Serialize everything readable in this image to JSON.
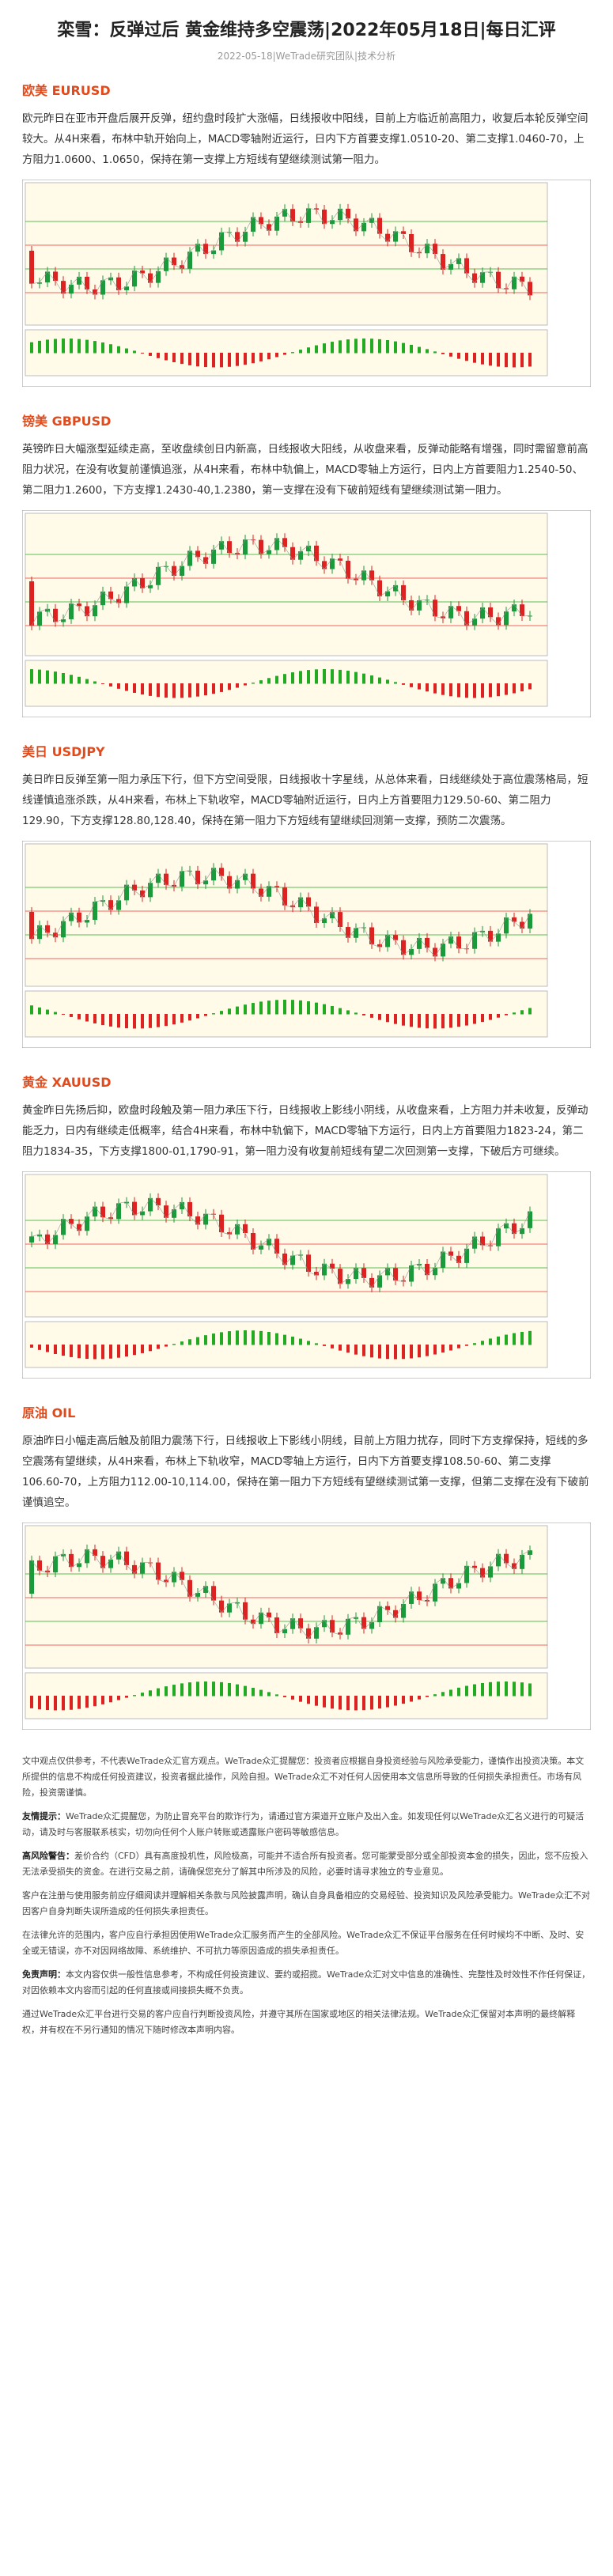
{
  "header": {
    "title": "栾雪：反弹过后 黄金维持多空震荡|2022年05月18日|每日汇评",
    "date_line": "2022-05-18|WeTrade研究团队|技术分析"
  },
  "sections": [
    {
      "heading": "欧美 EURUSD",
      "body": "欧元昨日在亚市开盘后展开反弹，纽约盘时段扩大涨幅，日线报收中阳线，目前上方临近前高阻力，收复后本轮反弹空间较大。从4H来看，布林中轨开始向上，MACD零轴附近运行，日内下方首要支撑1.0510-20、第二支撑1.0460-70，上方阻力1.0600、1.0650，保持在第一支撑上方短线有望继续测试第一阻力。"
    },
    {
      "heading": "镑美 GBPUSD",
      "body": "英镑昨日大幅涨型延续走高，至收盘续创日内新高，日线报收大阳线，从收盘来看，反弹动能略有增强，同时需留意前高阻力状况，在没有收复前谨慎追涨，从4H来看，布林中轨偏上，MACD零轴上方运行，日内上方首要阻力1.2540-50、第二阻力1.2600，下方支撑1.2430-40,1.2380，第一支撑在没有下破前短线有望继续测试第一阻力。"
    },
    {
      "heading": "美日 USDJPY",
      "body": "美日昨日反弹至第一阻力承压下行，但下方空间受限，日线报收十字星线，从总体来看，日线继续处于高位震荡格局，短线谨慎追涨杀跌，从4H来看，布林上下轨收窄，MACD零轴附近运行，日内上方首要阻力129.50-60、第二阻力129.90，下方支撑128.80,128.40，保持在第一阻力下方短线有望继续回测第一支撑，预防二次震荡。"
    },
    {
      "heading": "黄金 XAUUSD",
      "body": "黄金昨日先扬后抑，欧盘时段触及第一阻力承压下行，日线报收上影线小阴线，从收盘来看，上方阻力并未收复，反弹动能乏力，日内有继续走低概率，结合4H来看，布林中轨偏下，MACD零轴下方运行，日内上方首要阻力1823-24，第二阻力1834-35，下方支撑1800-01,1790-91，第一阻力没有收复前短线有望二次回测第一支撑，下破后方可继续。"
    },
    {
      "heading": "原油 OIL",
      "body": "原油昨日小幅走高后触及前阻力震荡下行，日线报收上下影线小阴线，目前上方阻力扰存，同时下方支撑保持，短线的多空震荡有望继续，从4H来看，布林上下轨收窄，MACD零轴上方运行，日内下方首要支撑108.50-60、第二支撑106.60-70，上方阻力112.00-10,114.00，保持在第一阻力下方短线有望继续测试第一支撑，但第二支撑在没有下破前谨慎追空。"
    }
  ],
  "disclaimer": [
    {
      "text": "文中观点仅供参考，不代表WeTrade众汇官方观点。WeTrade众汇提醒您：投资者应根据自身投资经验与风险承受能力，谨慎作出投资决策。本文所提供的信息不构成任何投资建议，投资者据此操作，风险自担。WeTrade众汇不对任何人因使用本文信息所导致的任何损失承担责任。市场有风险，投资需谨慎。"
    },
    {
      "lead": "友情提示：",
      "text": "WeTrade众汇提醒您，为防止冒充平台的欺诈行为，请通过官方渠道开立账户及出入金。如发现任何以WeTrade众汇名义进行的可疑活动，请及时与客服联系核实，切勿向任何个人账户转账或透露账户密码等敏感信息。"
    },
    {
      "lead": "高风险警告：",
      "text": "差价合约（CFD）具有高度投机性，风险极高，可能并不适合所有投资者。您可能蒙受部分或全部投资本金的损失，因此，您不应投入无法承受损失的资金。在进行交易之前，请确保您充分了解其中所涉及的风险，必要时请寻求独立的专业意见。"
    },
    {
      "text": "客户在注册与使用服务前应仔细阅读并理解相关条款与风险披露声明，确认自身具备相应的交易经验、投资知识及风险承受能力。WeTrade众汇不对因客户自身判断失误所造成的任何损失承担责任。"
    },
    {
      "text": "在法律允许的范围内，客户应自行承担因使用WeTrade众汇服务而产生的全部风险。WeTrade众汇不保证平台服务在任何时候均不中断、及时、安全或无错误，亦不对因网络故障、系统维护、不可抗力等原因造成的损失承担责任。"
    },
    {
      "lead": "免责声明：",
      "text": "本文内容仅供一般性信息参考，不构成任何投资建议、要约或招揽。WeTrade众汇对文中信息的准确性、完整性及时效性不作任何保证，对因依赖本文内容而引起的任何直接或间接损失概不负责。"
    },
    {
      "text": "通过WeTrade众汇平台进行交易的客户应自行判断投资风险，并遵守其所在国家或地区的相关法律法规。WeTrade众汇保留对本声明的最终解释权，并有权在不另行通知的情况下随时修改本声明内容。"
    }
  ]
}
